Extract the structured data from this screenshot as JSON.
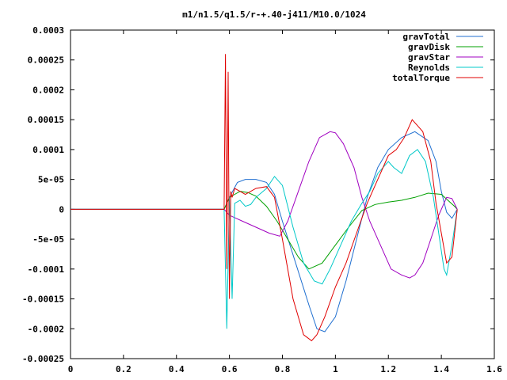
{
  "chart_data": {
    "type": "line",
    "title": "m1/n1.5/q1.5/r-+.40-j411/M10.0/1024",
    "xlabel": "",
    "ylabel": "",
    "xlim": [
      0,
      1.6
    ],
    "ylim": [
      -0.00025,
      0.0003
    ],
    "xticks": [
      "0",
      "0.2",
      "0.4",
      "0.6",
      "0.8",
      "1",
      "1.2",
      "1.4",
      "1.6"
    ],
    "yticks": [
      "0.0003",
      "0.00025",
      "0.0002",
      "0.00015",
      "0.0001",
      "5e-05",
      "0",
      "-5e-05",
      "-0.0001",
      "-0.00015",
      "-0.0002",
      "-0.00025"
    ],
    "legend_position": "top-right",
    "grid": false,
    "series": [
      {
        "name": "gravTotal",
        "color": "#1f6fd0",
        "x": [
          0,
          0.58,
          0.6,
          0.63,
          0.66,
          0.7,
          0.74,
          0.77,
          0.8,
          0.85,
          0.9,
          0.93,
          0.96,
          1.0,
          1.04,
          1.08,
          1.12,
          1.16,
          1.2,
          1.25,
          1.3,
          1.35,
          1.38,
          1.4,
          1.42,
          1.44,
          1.46
        ],
        "y": [
          0,
          0,
          2e-05,
          4.5e-05,
          5e-05,
          5e-05,
          4.5e-05,
          2.5e-05,
          -2e-05,
          -9e-05,
          -0.00016,
          -0.0002,
          -0.000205,
          -0.00018,
          -0.00012,
          -5e-05,
          2e-05,
          7e-05,
          0.0001,
          0.00012,
          0.00013,
          0.000115,
          8e-05,
          3e-05,
          -5e-06,
          -1.5e-05,
          0
        ]
      },
      {
        "name": "gravDisk",
        "color": "#00a000",
        "x": [
          0,
          0.58,
          0.6,
          0.62,
          0.64,
          0.67,
          0.7,
          0.74,
          0.78,
          0.82,
          0.86,
          0.9,
          0.95,
          1.0,
          1.05,
          1.1,
          1.15,
          1.2,
          1.25,
          1.3,
          1.35,
          1.4,
          1.45,
          1.46
        ],
        "y": [
          0,
          0,
          2e-05,
          2.5e-05,
          3e-05,
          2.8e-05,
          2.2e-05,
          5e-06,
          -2e-05,
          -5e-05,
          -8e-05,
          -0.0001,
          -9e-05,
          -6e-05,
          -3e-05,
          -2e-06,
          8e-06,
          1.2e-05,
          1.5e-05,
          2e-05,
          2.7e-05,
          2.5e-05,
          5e-06,
          0
        ]
      },
      {
        "name": "gravStar",
        "color": "#a000c0",
        "x": [
          0,
          0.58,
          0.6,
          0.65,
          0.7,
          0.75,
          0.79,
          0.82,
          0.86,
          0.9,
          0.94,
          0.98,
          1.0,
          1.03,
          1.07,
          1.1,
          1.13,
          1.17,
          1.21,
          1.25,
          1.28,
          1.3,
          1.33,
          1.36,
          1.39,
          1.42,
          1.44,
          1.46
        ],
        "y": [
          0,
          0,
          -1e-05,
          -2e-05,
          -3e-05,
          -4e-05,
          -4.5e-05,
          -2e-05,
          3e-05,
          8e-05,
          0.00012,
          0.00013,
          0.000128,
          0.00011,
          7e-05,
          2e-05,
          -2e-05,
          -6e-05,
          -0.0001,
          -0.00011,
          -0.000115,
          -0.00011,
          -9e-05,
          -5e-05,
          -1e-05,
          2e-05,
          1.8e-05,
          0
        ]
      },
      {
        "name": "Reynolds",
        "color": "#00c8c8",
        "x": [
          0,
          0.58,
          0.59,
          0.6,
          0.61,
          0.62,
          0.64,
          0.66,
          0.68,
          0.7,
          0.74,
          0.77,
          0.8,
          0.84,
          0.88,
          0.92,
          0.95,
          0.98,
          1.02,
          1.06,
          1.1,
          1.13,
          1.16,
          1.2,
          1.22,
          1.25,
          1.28,
          1.31,
          1.34,
          1.37,
          1.39,
          1.41,
          1.42,
          1.44,
          1.46
        ],
        "y": [
          0,
          0,
          -0.0002,
          2e-05,
          -0.00015,
          1e-05,
          1.5e-05,
          5e-06,
          8e-06,
          2e-05,
          3.5e-05,
          5.5e-05,
          4e-05,
          -3e-05,
          -9e-05,
          -0.00012,
          -0.000125,
          -0.0001,
          -6e-05,
          -2e-05,
          1e-05,
          3e-05,
          6e-05,
          8e-05,
          7e-05,
          6e-05,
          9e-05,
          0.0001,
          8e-05,
          2e-05,
          -4e-05,
          -0.0001,
          -0.00011,
          -6e-05,
          0
        ]
      },
      {
        "name": "totalTorque",
        "color": "#e00000",
        "x": [
          0,
          0.58,
          0.585,
          0.59,
          0.595,
          0.6,
          0.605,
          0.61,
          0.62,
          0.64,
          0.66,
          0.7,
          0.74,
          0.77,
          0.8,
          0.84,
          0.88,
          0.91,
          0.93,
          0.96,
          1.0,
          1.04,
          1.08,
          1.12,
          1.16,
          1.2,
          1.23,
          1.26,
          1.29,
          1.31,
          1.33,
          1.36,
          1.38,
          1.4,
          1.42,
          1.44,
          1.46
        ],
        "y": [
          0,
          0,
          0.00026,
          -0.0001,
          0.00023,
          -0.00015,
          3e-05,
          2e-05,
          3.5e-05,
          3e-05,
          2.5e-05,
          3.5e-05,
          3.8e-05,
          2e-05,
          -5e-05,
          -0.00015,
          -0.00021,
          -0.00022,
          -0.00021,
          -0.00018,
          -0.00013,
          -9e-05,
          -4e-05,
          1e-05,
          5e-05,
          9e-05,
          0.0001,
          0.00012,
          0.00015,
          0.00014,
          0.00013,
          8e-05,
          1e-05,
          -4e-05,
          -9e-05,
          -8e-05,
          0
        ]
      }
    ]
  }
}
